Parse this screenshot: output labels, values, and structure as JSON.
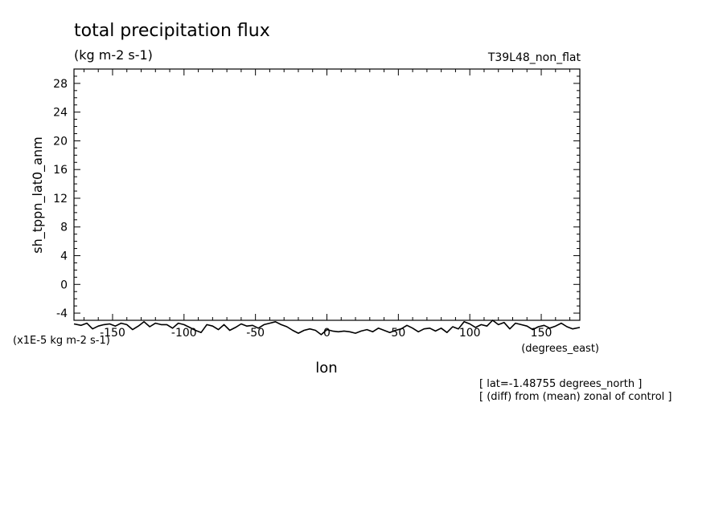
{
  "chart_data": {
    "type": "line",
    "title": "total precipitation flux",
    "subtitle": "(kg m-2 s-1)",
    "run_label": "T39L48_non_flat",
    "ylabel": "sh_tppn_lat0_anm",
    "xlabel": "lon",
    "x_units_label": "(degrees_east)",
    "y_scale_label": "(x1E-5 kg m-2 s-1)",
    "notes": [
      "[ lat=-1.48755 degrees_north ]",
      "[ (diff) from (mean) zonal of control ]"
    ],
    "xlim": [
      -177,
      177
    ],
    "ylim": [
      -5,
      30
    ],
    "x_ticks": [
      -150,
      -100,
      -50,
      0,
      50,
      100,
      150
    ],
    "x_tick_labels": [
      "-150",
      "-100",
      "-50",
      "0",
      "50",
      "100",
      "150"
    ],
    "y_ticks": [
      -4,
      0,
      4,
      8,
      12,
      16,
      20,
      24,
      28
    ],
    "y_tick_labels": [
      "-4",
      "0",
      "4",
      "8",
      "12",
      "16",
      "20",
      "24",
      "28"
    ],
    "grid": false,
    "series": [
      {
        "x": [
          -177,
          -172,
          -168,
          -164,
          -160,
          -156,
          -152,
          -148,
          -144,
          -140,
          -136,
          -132,
          -128,
          -124,
          -120,
          -116,
          -112,
          -108,
          -104,
          -100,
          -96,
          -92,
          -88,
          -84,
          -80,
          -76,
          -72,
          -68,
          -64,
          -60,
          -56,
          -52,
          -48,
          -44,
          -40,
          -36,
          -32,
          -28,
          -24,
          -20,
          -16,
          -12,
          -8,
          -4,
          0,
          4,
          8,
          12,
          16,
          20,
          24,
          28,
          32,
          36,
          40,
          44,
          48,
          52,
          56,
          60,
          64,
          68,
          72,
          76,
          80,
          84,
          88,
          92,
          96,
          100,
          104,
          108,
          112,
          116,
          120,
          124,
          128,
          132,
          136,
          140,
          144,
          148,
          152,
          156,
          160,
          164,
          168,
          172,
          177
        ],
        "y": [
          -5.5,
          -5.7,
          -5.4,
          -6.2,
          -5.8,
          -5.6,
          -5.5,
          -5.8,
          -5.4,
          -5.6,
          -6.3,
          -5.8,
          -5.2,
          -5.9,
          -5.4,
          -5.6,
          -5.6,
          -6.1,
          -5.4,
          -5.6,
          -6.0,
          -6.4,
          -6.7,
          -5.6,
          -5.8,
          -6.3,
          -5.6,
          -6.4,
          -6.0,
          -5.5,
          -5.8,
          -5.7,
          -6.1,
          -5.6,
          -5.4,
          -5.2,
          -5.6,
          -5.9,
          -6.4,
          -6.8,
          -6.4,
          -6.2,
          -6.4,
          -7.0,
          -6.3,
          -6.5,
          -6.6,
          -6.5,
          -6.6,
          -6.8,
          -6.5,
          -6.3,
          -6.6,
          -6.1,
          -6.4,
          -6.7,
          -6.4,
          -6.2,
          -5.7,
          -6.1,
          -6.6,
          -6.2,
          -6.1,
          -6.5,
          -6.1,
          -6.7,
          -5.9,
          -6.2,
          -5.2,
          -5.5,
          -6.0,
          -5.6,
          -5.8,
          -5.0,
          -5.6,
          -5.3,
          -6.2,
          -5.4,
          -5.6,
          -5.8,
          -6.3,
          -5.9,
          -5.7,
          -6.1,
          -5.8,
          -5.4,
          -5.9,
          -6.2,
          -6.0
        ]
      }
    ]
  }
}
